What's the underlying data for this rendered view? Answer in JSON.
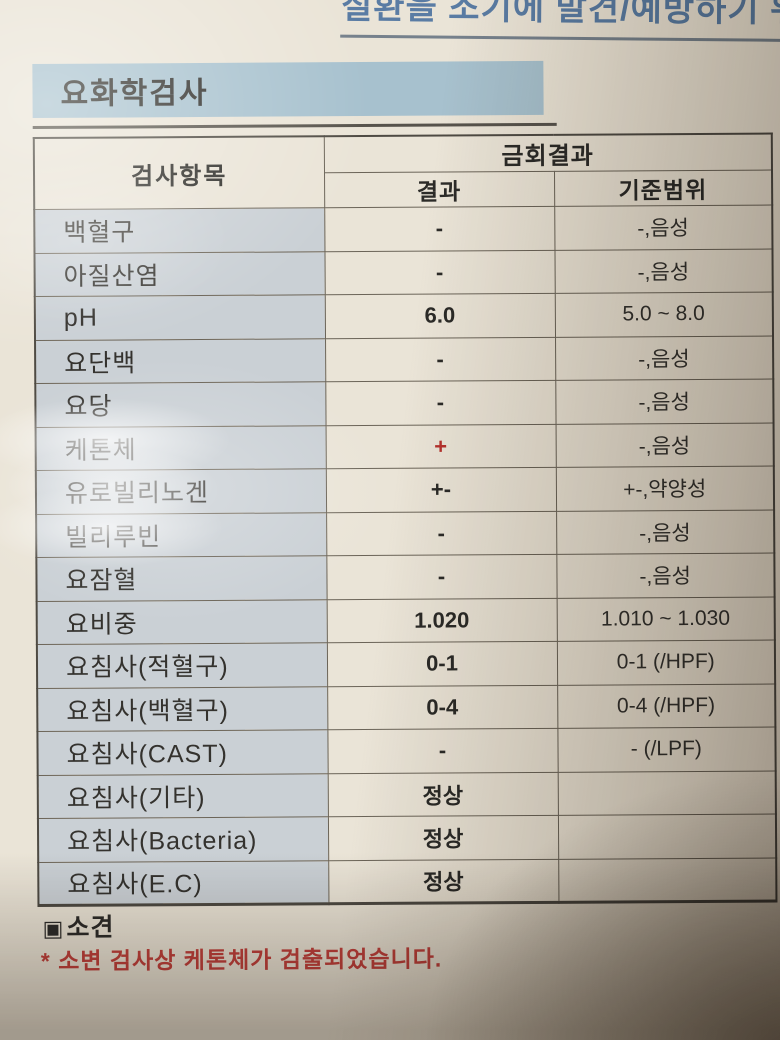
{
  "page_top": {
    "clipped_header_text": "질환을 조기에 발견/예방하기 위한"
  },
  "section": {
    "title": "요화학검사"
  },
  "table": {
    "item_header": "검사항목",
    "group_header": "금회결과",
    "sub_headers": {
      "result": "결과",
      "range": "기준범위"
    },
    "rows": [
      {
        "item": "백혈구",
        "result": "-",
        "range": "-,음성",
        "abnormal": false
      },
      {
        "item": "아질산염",
        "result": "-",
        "range": "-,음성",
        "abnormal": false
      },
      {
        "item": "pH",
        "result": "6.0",
        "range": "5.0 ~ 8.0",
        "abnormal": false
      },
      {
        "item": "요단백",
        "result": "-",
        "range": "-,음성",
        "abnormal": false
      },
      {
        "item": "요당",
        "result": "-",
        "range": "-,음성",
        "abnormal": false
      },
      {
        "item": "케톤체",
        "result": "+",
        "range": "-,음성",
        "abnormal": true
      },
      {
        "item": "유로빌리노겐",
        "result": "+-",
        "range": "+-,약양성",
        "abnormal": false
      },
      {
        "item": "빌리루빈",
        "result": "-",
        "range": "-,음성",
        "abnormal": false
      },
      {
        "item": "요잠혈",
        "result": "-",
        "range": "-,음성",
        "abnormal": false
      },
      {
        "item": "요비중",
        "result": "1.020",
        "range": "1.010 ~ 1.030",
        "abnormal": false
      },
      {
        "item": "요침사(적혈구)",
        "result": "0-1",
        "range": "0-1 (/HPF)",
        "abnormal": false
      },
      {
        "item": "요침사(백혈구)",
        "result": "0-4",
        "range": "0-4 (/HPF)",
        "abnormal": false
      },
      {
        "item": "요침사(CAST)",
        "result": "-",
        "range": "- (/LPF)",
        "abnormal": false
      },
      {
        "item": "요침사(기타)",
        "result": "정상",
        "range": "",
        "abnormal": false
      },
      {
        "item": "요침사(Bacteria)",
        "result": "정상",
        "range": "",
        "abnormal": false
      },
      {
        "item": "요침사(E.C)",
        "result": "정상",
        "range": "",
        "abnormal": false
      }
    ]
  },
  "findings": {
    "bullet": "▣",
    "title": "소견",
    "note": "* 소변 검사상 케톤체가 검출되었습니다."
  },
  "colors": {
    "title_band": "#a7c1ce",
    "item_cell": "#cad0d5",
    "paper": "#eae4d7",
    "abnormal_red": "#b5312c",
    "note_red": "#c2423c",
    "top_header_blue": "#5a7ca4"
  }
}
